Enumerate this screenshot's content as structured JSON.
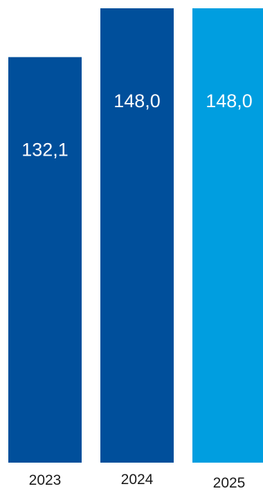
{
  "chart_data": {
    "type": "bar",
    "categories": [
      "2023",
      "2024",
      "2025"
    ],
    "values": [
      132.1,
      148.0,
      148.0
    ],
    "value_labels": [
      "132,1",
      "148,0",
      "148,0"
    ],
    "colors": [
      "#004f9b",
      "#004f9b",
      "#009ee0"
    ],
    "title": "",
    "xlabel": "",
    "ylabel": "",
    "ylim": [
      0,
      148.0
    ],
    "grid": false,
    "legend": "none"
  }
}
